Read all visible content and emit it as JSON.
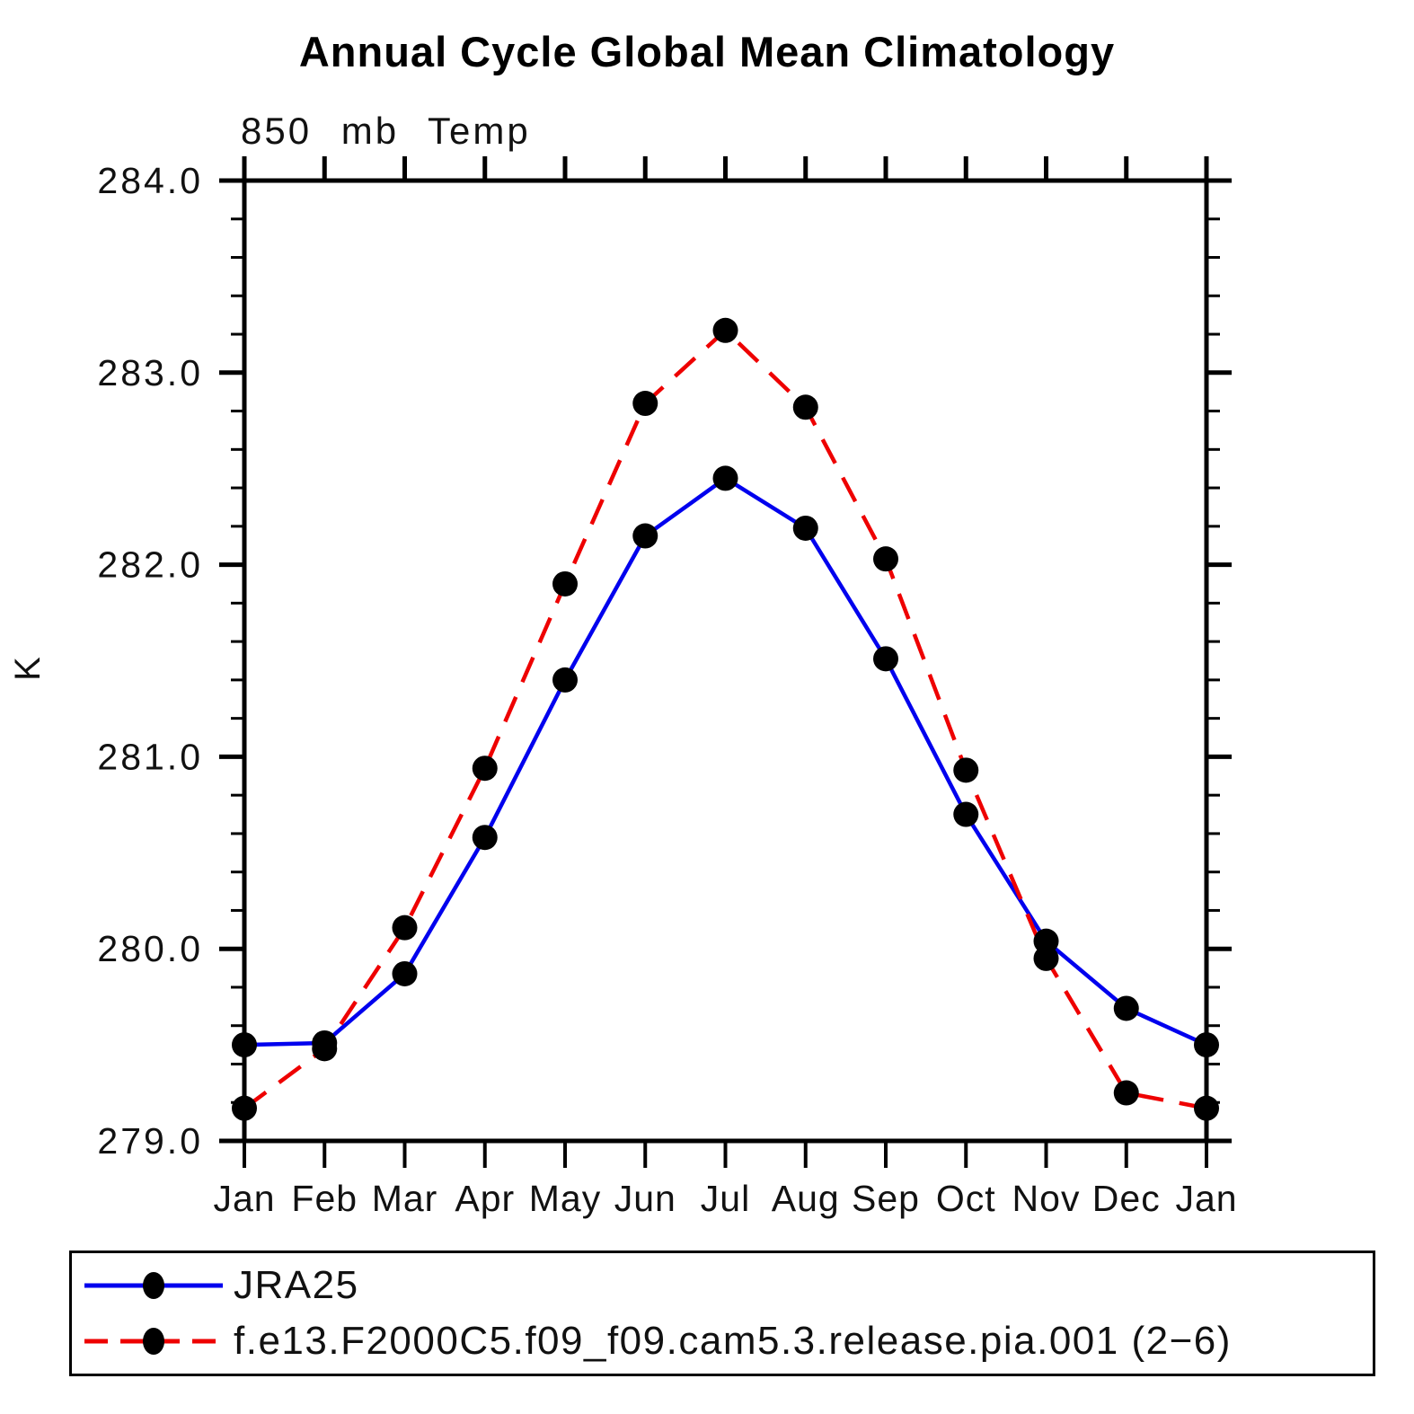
{
  "title": "Annual Cycle Global Mean Climatology",
  "subtitle": "850 mb Temp",
  "ylabel": "K",
  "legend": {
    "items": [
      {
        "label": "JRA25",
        "color": "#0000ee",
        "style": "solid"
      },
      {
        "label": "f.e13.F2000C5.f09_f09.cam5.3.release.pia.001 (2−6)",
        "color": "#ee0000",
        "style": "dashed"
      }
    ]
  },
  "chart_data": {
    "type": "line",
    "title": "Annual Cycle Global Mean Climatology",
    "subtitle": "850 mb Temp",
    "xlabel": "",
    "ylabel": "K",
    "x_tick_labels": [
      "Jan",
      "Feb",
      "Mar",
      "Apr",
      "May",
      "Jun",
      "Jul",
      "Aug",
      "Sep",
      "Oct",
      "Nov",
      "Dec",
      "Jan"
    ],
    "y_ticks": [
      279.0,
      280.0,
      281.0,
      282.0,
      283.0,
      284.0
    ],
    "ylim": [
      279.0,
      284.0
    ],
    "y_minor_step": 0.2,
    "grid": false,
    "legend_position": "bottom",
    "marker": "filled-circle",
    "marker_color": "#000000",
    "series": [
      {
        "name": "JRA25",
        "color": "#0000ee",
        "line_style": "solid",
        "values": [
          279.5,
          279.51,
          279.87,
          280.58,
          281.4,
          282.15,
          282.45,
          282.19,
          281.51,
          280.7,
          280.04,
          279.69,
          279.5
        ]
      },
      {
        "name": "f.e13.F2000C5.f09_f09.cam5.3.release.pia.001 (2−6)",
        "color": "#ee0000",
        "line_style": "dashed",
        "values": [
          279.17,
          279.48,
          280.11,
          280.94,
          281.9,
          282.84,
          283.22,
          282.82,
          282.03,
          280.93,
          279.95,
          279.25,
          279.17
        ]
      }
    ]
  }
}
